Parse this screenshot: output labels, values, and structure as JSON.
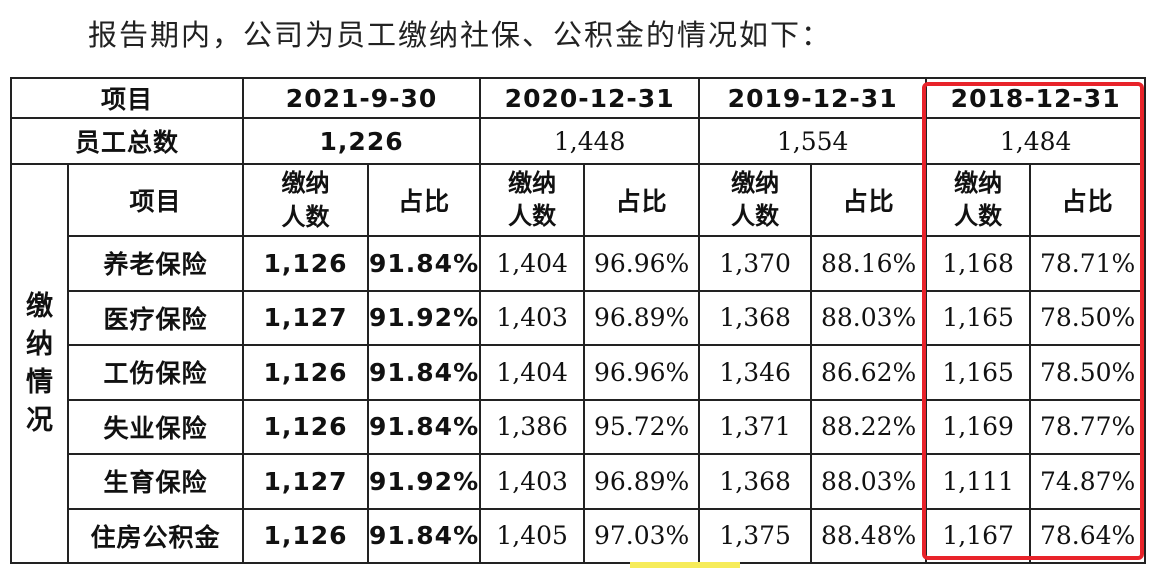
{
  "intro": "报告期内，公司为员工缴纳社保、公积金的情况如下：",
  "header": {
    "item_label": "项目",
    "periods": [
      "2021-9-30",
      "2020-12-31",
      "2019-12-31",
      "2018-12-31"
    ]
  },
  "total": {
    "label": "员工总数",
    "values": [
      "1,226",
      "1,448",
      "1,554",
      "1,484"
    ]
  },
  "group_label": "缴纳情况",
  "subheader": {
    "item_label": "项目",
    "count_line1": "缴纳",
    "count_line2": "人数",
    "ratio": "占比"
  },
  "rows": [
    {
      "name": "养老保险",
      "c": [
        [
          "1,126",
          "91.84%"
        ],
        [
          "1,404",
          "96.96%"
        ],
        [
          "1,370",
          "88.16%"
        ],
        [
          "1,168",
          "78.71%"
        ]
      ]
    },
    {
      "name": "医疗保险",
      "c": [
        [
          "1,127",
          "91.92%"
        ],
        [
          "1,403",
          "96.89%"
        ],
        [
          "1,368",
          "88.03%"
        ],
        [
          "1,165",
          "78.50%"
        ]
      ]
    },
    {
      "name": "工伤保险",
      "c": [
        [
          "1,126",
          "91.84%"
        ],
        [
          "1,404",
          "96.96%"
        ],
        [
          "1,346",
          "86.62%"
        ],
        [
          "1,165",
          "78.50%"
        ]
      ]
    },
    {
      "name": "失业保险",
      "c": [
        [
          "1,126",
          "91.84%"
        ],
        [
          "1,386",
          "95.72%"
        ],
        [
          "1,371",
          "88.22%"
        ],
        [
          "1,169",
          "78.77%"
        ]
      ]
    },
    {
      "name": "生育保险",
      "c": [
        [
          "1,127",
          "91.92%"
        ],
        [
          "1,403",
          "96.89%"
        ],
        [
          "1,368",
          "88.03%"
        ],
        [
          "1,111",
          "74.87%"
        ]
      ]
    },
    {
      "name": "住房公积金",
      "c": [
        [
          "1,126",
          "91.84%"
        ],
        [
          "1,405",
          "97.03%"
        ],
        [
          "1,375",
          "88.48%"
        ],
        [
          "1,167",
          "78.64%"
        ]
      ]
    }
  ],
  "colors": {
    "highlight_border": "#e8232a",
    "grid": "#222222"
  }
}
